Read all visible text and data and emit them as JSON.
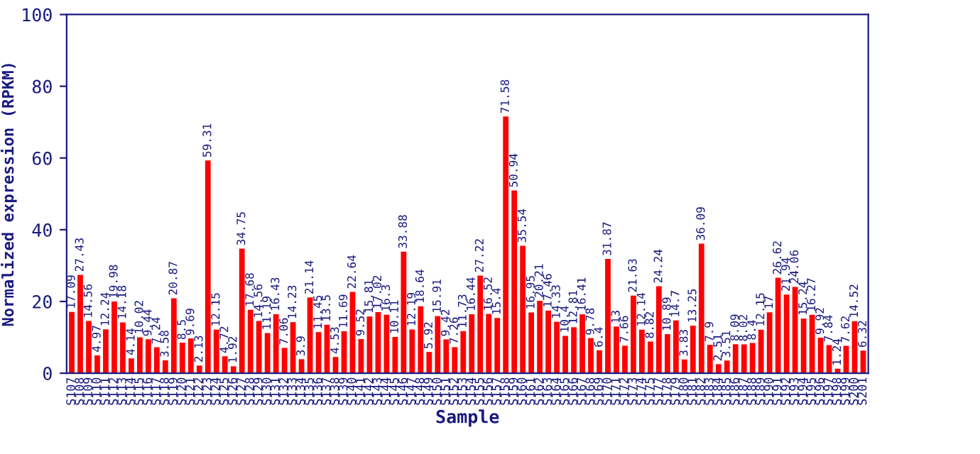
{
  "chart_data": {
    "type": "bar",
    "xlabel": "Sample",
    "ylabel": "Normalized expression (RPKM)",
    "categories": [
      "S107",
      "S108",
      "S109",
      "S110",
      "S111",
      "S112",
      "S113",
      "S114",
      "S115",
      "S116",
      "S117",
      "S118",
      "S119",
      "S120",
      "S121",
      "S122",
      "S123",
      "S124",
      "S125",
      "S126",
      "S127",
      "S128",
      "S129",
      "S130",
      "S131",
      "S132",
      "S133",
      "S134",
      "S135",
      "S136",
      "S137",
      "S138",
      "S139",
      "S140",
      "S141",
      "S142",
      "S143",
      "S144",
      "S145",
      "S146",
      "S147",
      "S148",
      "S149",
      "S150",
      "S151",
      "S152",
      "S153",
      "S154",
      "S155",
      "S156",
      "S157",
      "S158",
      "S159",
      "S160",
      "S161",
      "S162",
      "S163",
      "S164",
      "S165",
      "S166",
      "S167",
      "S168",
      "S169",
      "S170",
      "S171",
      "S172",
      "S173",
      "S174",
      "S175",
      "S177",
      "S178",
      "S179",
      "S180",
      "S181",
      "S182",
      "S183",
      "S184",
      "S185",
      "S186",
      "S187",
      "S188",
      "S189",
      "S190",
      "S191",
      "S192",
      "S193",
      "S194",
      "S195",
      "S196",
      "S197",
      "S198",
      "S199",
      "S200",
      "S201"
    ],
    "values": [
      17.09,
      27.43,
      14.56,
      4.97,
      12.24,
      19.98,
      14.18,
      4.14,
      10.02,
      9.44,
      7.24,
      3.58,
      20.87,
      8.5,
      9.69,
      2.13,
      59.31,
      12.15,
      4.72,
      1.92,
      34.75,
      17.68,
      14.56,
      11.19,
      16.43,
      7.06,
      14.23,
      3.9,
      21.14,
      11.45,
      13.5,
      4.53,
      11.69,
      22.64,
      9.52,
      15.81,
      17.02,
      16.3,
      10.11,
      33.88,
      12.19,
      18.64,
      5.92,
      15.91,
      9.42,
      7.26,
      11.73,
      16.44,
      27.22,
      16.52,
      15.4,
      71.58,
      50.94,
      35.54,
      16.95,
      20.21,
      17.46,
      14.33,
      10.4,
      12.81,
      16.41,
      9.78,
      6.4,
      31.87,
      13,
      7.66,
      21.63,
      12.14,
      8.82,
      24.24,
      10.89,
      14.7,
      3.83,
      13.25,
      36.09,
      7.9,
      2.51,
      3.51,
      8.09,
      8.02,
      8.4,
      12.15,
      17,
      26.62,
      21.94,
      24.06,
      15.24,
      16.27,
      9.92,
      7.84,
      1.24,
      7.62,
      14.52,
      6.32
    ],
    "color": "#ff0000",
    "data_labels": true,
    "ylim": [
      0,
      100
    ],
    "yticks": [
      0,
      20,
      40,
      60,
      80,
      100
    ],
    "grid": false
  }
}
